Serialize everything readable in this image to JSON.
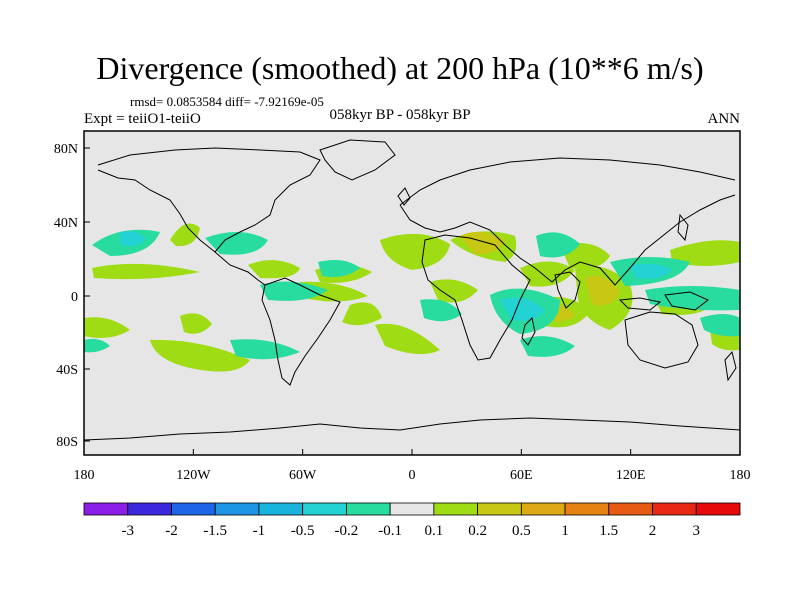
{
  "title": "Divergence (smoothed) at 200 hPa (10**6 m/s)",
  "stats": "rmsd= 0.0853584 diff= -7.92169e-05",
  "left_label": "Expt = teiiO1-teiiO",
  "center_label": "058kyr BP - 058kyr BP",
  "right_label": "ANN",
  "lat_ticks": [
    "80N",
    "40N",
    "0",
    "40S",
    "80S"
  ],
  "lon_ticks": [
    "180",
    "120W",
    "60W",
    "0",
    "60E",
    "120E",
    "180"
  ],
  "colorbar": {
    "labels": [
      "-3",
      "-2",
      "-1.5",
      "-1",
      "-0.5",
      "-0.2",
      "-0.1",
      "0.1",
      "0.2",
      "0.5",
      "1",
      "1.5",
      "2",
      "3"
    ],
    "colors": [
      "#8a1ee6",
      "#3c28dc",
      "#1e64e6",
      "#1e96e6",
      "#19b4dc",
      "#23d2d2",
      "#28dca0",
      "#e6e6e6",
      "#a0dc14",
      "#c8c814",
      "#dcaa14",
      "#e68214",
      "#e65a14",
      "#e62814",
      "#e60a0a"
    ]
  },
  "colors": {
    "map_background": "#e6e6e6",
    "coastline": "#000000"
  }
}
